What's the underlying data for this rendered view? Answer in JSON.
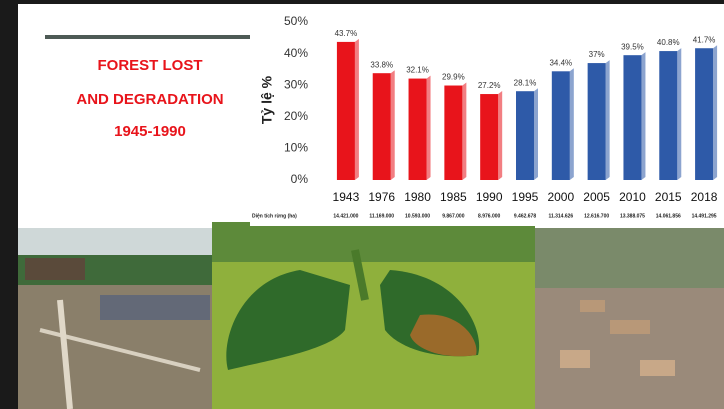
{
  "slide": {
    "heading": [
      "FOREST LOST",
      "AND DEGRADATION",
      "1945-1990"
    ]
  },
  "chart_data": {
    "type": "bar",
    "ylabel": "Tỷ lệ %",
    "categories": [
      "1943",
      "1976",
      "1980",
      "1985",
      "1990",
      "1995",
      "2000",
      "2005",
      "2010",
      "2015",
      "2018"
    ],
    "values": [
      43.7,
      33.8,
      32.1,
      29.9,
      27.2,
      28.1,
      34.4,
      37,
      39.5,
      40.8,
      41.7
    ],
    "value_labels": [
      "43.7%",
      "33.8%",
      "32.1%",
      "29.9%",
      "27.2%",
      "28.1%",
      "34.4%",
      "37%",
      "39.5%",
      "40.8%",
      "41.7%"
    ],
    "colors": [
      "#e8141b",
      "#e8141b",
      "#e8141b",
      "#e8141b",
      "#e8141b",
      "#2e5aa8",
      "#2e5aa8",
      "#2e5aa8",
      "#2e5aa8",
      "#2e5aa8",
      "#2e5aa8"
    ],
    "ylim": [
      0,
      50
    ],
    "yticks": [
      {
        "value": 0,
        "label": "0%"
      },
      {
        "value": 10,
        "label": "10%"
      },
      {
        "value": 20,
        "label": "20%"
      },
      {
        "value": 30,
        "label": "30%"
      },
      {
        "value": 40,
        "label": "40%"
      },
      {
        "value": 50,
        "label": "50%"
      }
    ],
    "area_row": {
      "label": "Diện tích rừng (ha)",
      "values": [
        "14.421.000",
        "11.169.000",
        "10.593.000",
        "9.867.000",
        "8.976.000",
        "9.462.678",
        "11.314.626",
        "12.616.700",
        "13.388.075",
        "14.061.856",
        "14.491.295"
      ]
    }
  }
}
